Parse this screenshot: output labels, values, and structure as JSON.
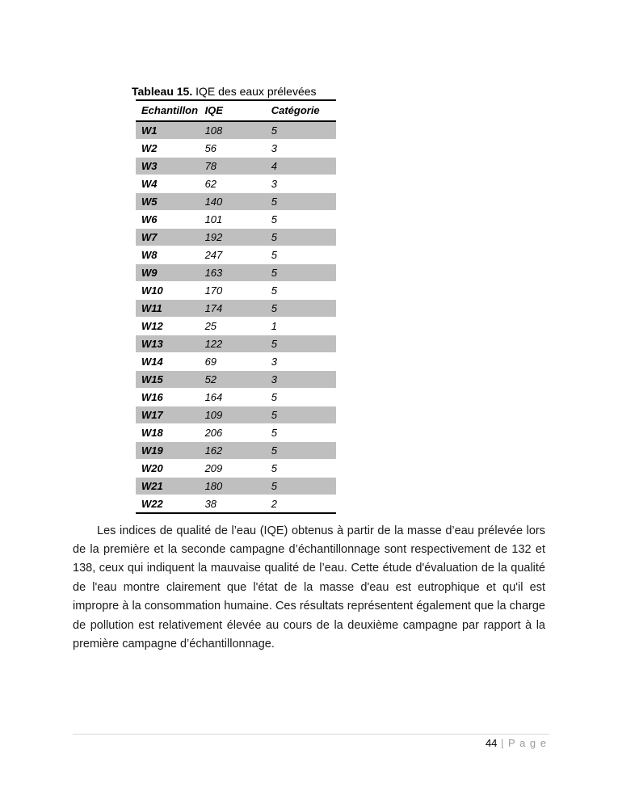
{
  "caption": {
    "label": "Tableau 15.",
    "text": " IQE des eaux prélevées"
  },
  "table": {
    "columns": [
      "Echantillon",
      "IQE",
      "Catégorie"
    ],
    "rows": [
      [
        "W1",
        "108",
        "5"
      ],
      [
        "W2",
        "56",
        "3"
      ],
      [
        "W3",
        "78",
        "4"
      ],
      [
        "W4",
        "62",
        "3"
      ],
      [
        "W5",
        "140",
        "5"
      ],
      [
        "W6",
        "101",
        "5"
      ],
      [
        "W7",
        "192",
        "5"
      ],
      [
        "W8",
        "247",
        "5"
      ],
      [
        "W9",
        "163",
        "5"
      ],
      [
        "W10",
        "170",
        "5"
      ],
      [
        "W11",
        "174",
        "5"
      ],
      [
        "W12",
        "25",
        "1"
      ],
      [
        "W13",
        "122",
        "5"
      ],
      [
        "W14",
        "69",
        "3"
      ],
      [
        "W15",
        "52",
        "3"
      ],
      [
        "W16",
        "164",
        "5"
      ],
      [
        "W17",
        "109",
        "5"
      ],
      [
        "W18",
        "206",
        "5"
      ],
      [
        "W19",
        "162",
        "5"
      ],
      [
        "W20",
        "209",
        "5"
      ],
      [
        "W21",
        "180",
        "5"
      ],
      [
        "W22",
        "38",
        "2"
      ]
    ]
  },
  "paragraph": "Les indices de qualité de l’eau (IQE) obtenus à partir de la masse d’eau prélevée lors de la première et la seconde campagne d’échantillonnage sont respectivement de 132 et 138, ceux qui indiquent la mauvaise qualité de l’eau. Cette étude d'évaluation de la qualité de l'eau montre clairement que l'état de la masse d'eau est eutrophique et qu'il est impropre à la consommation humaine. Ces résultats représentent également que la charge de pollution est relativement élevée au cours de la deuxième campagne par rapport à la première campagne d’échantillonnage.",
  "footer": {
    "page_number": "44",
    "separator": " | ",
    "page_label": "P a g e"
  },
  "colors": {
    "row_shade": "#bfbfbf",
    "footer_gray": "#9a9a9a",
    "rule_gray": "#d9d9d9"
  }
}
